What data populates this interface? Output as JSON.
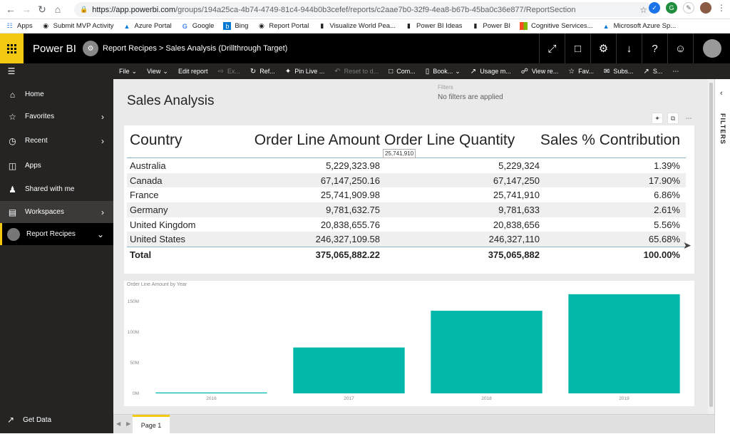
{
  "browser": {
    "url_host": "https://app.powerbi.com",
    "url_path": "/groups/194a25ca-4b74-4749-81c4-944b0b3cefef/reports/c2aae7b0-32f9-4ea8-b67b-45ba0c36e877/ReportSection"
  },
  "bookmarks": [
    {
      "label": "Apps",
      "icon": "apps-grid-icon"
    },
    {
      "label": "Submit MVP Activity",
      "icon": "globe-icon"
    },
    {
      "label": "Azure Portal",
      "icon": "azure-icon"
    },
    {
      "label": "Google",
      "icon": "google-icon"
    },
    {
      "label": "Bing",
      "icon": "bing-icon"
    },
    {
      "label": "Report Portal",
      "icon": "globe-icon"
    },
    {
      "label": "Visualize World Pea...",
      "icon": "powerbi-icon"
    },
    {
      "label": "Power BI Ideas",
      "icon": "powerbi-icon"
    },
    {
      "label": "Power BI",
      "icon": "powerbi-icon"
    },
    {
      "label": "Cognitive Services...",
      "icon": "microsoft-icon"
    },
    {
      "label": "Microsoft Azure Sp...",
      "icon": "azure-icon"
    }
  ],
  "header": {
    "brand": "Power BI",
    "breadcrumb": "Report Recipes  >  Sales Analysis (Drillthrough Target)"
  },
  "toolbar": {
    "file": "File",
    "view": "View",
    "edit_report": "Edit report",
    "export": "Ex...",
    "refresh": "Ref...",
    "pin_live": "Pin Live ...",
    "reset": "Reset to d...",
    "comments": "Com...",
    "bookmarks": "Book...",
    "usage": "Usage m...",
    "view_related": "View re...",
    "favorite": "Fav...",
    "subscribe": "Subs...",
    "share": "S..."
  },
  "nav": {
    "home": "Home",
    "favorites": "Favorites",
    "recent": "Recent",
    "apps": "Apps",
    "shared": "Shared with me",
    "workspaces": "Workspaces",
    "report_recipes": "Report Recipes",
    "get_data": "Get Data"
  },
  "filters": {
    "title": "Filters",
    "subtitle": "No filters are applied",
    "pane_label": "FILTERS"
  },
  "page_title": "Sales Analysis",
  "table": {
    "headers": [
      "Country",
      "Order Line Amount",
      "Order Line Quantity",
      "Sales % Contribution"
    ],
    "rows": [
      [
        "Australia",
        "5,229,323.98",
        "5,229,324",
        "1.39%"
      ],
      [
        "Canada",
        "67,147,250.16",
        "67,147,250",
        "17.90%"
      ],
      [
        "France",
        "25,741,909.98",
        "25,741,910",
        "6.86%"
      ],
      [
        "Germany",
        "9,781,632.75",
        "9,781,633",
        "2.61%"
      ],
      [
        "United Kingdom",
        "20,838,655.76",
        "20,838,656",
        "5.56%"
      ],
      [
        "United States",
        "246,327,109.58",
        "246,327,110",
        "65.68%"
      ]
    ],
    "total": [
      "Total",
      "375,065,882.22",
      "375,065,882",
      "100.00%"
    ],
    "tooltip": "25,741,910"
  },
  "chart_data": {
    "type": "bar",
    "title": "Order Line Amount by Year",
    "categories": [
      "2016",
      "2017",
      "2018",
      "2019"
    ],
    "values": [
      1.5,
      75,
      135,
      162
    ],
    "unit": "M",
    "ylim": [
      0,
      170
    ],
    "yticks": [
      "0M",
      "50M",
      "100M",
      "150M"
    ],
    "ytick_values": [
      0,
      50,
      100,
      150
    ],
    "bar_color": "#01b8aa"
  },
  "pages": {
    "tab1": "Page 1"
  }
}
